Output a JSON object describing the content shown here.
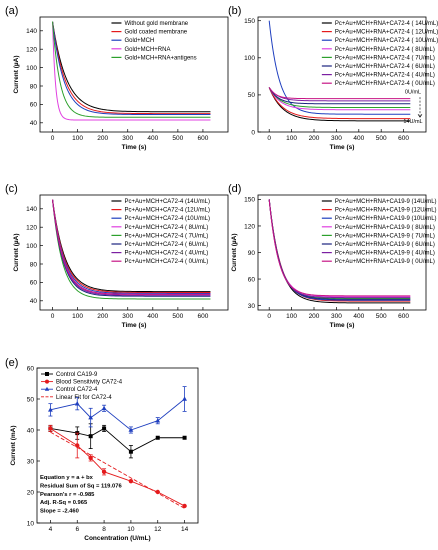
{
  "chart_data": [
    {
      "panel": "(a)",
      "type": "line",
      "xlabel": "Time (s)",
      "ylabel": "Current (µA)",
      "xlim": [
        -50,
        700
      ],
      "ylim": [
        30,
        155
      ],
      "xticks": [
        0,
        100,
        200,
        300,
        400,
        500,
        600
      ],
      "yticks": [
        40,
        60,
        80,
        100,
        120,
        140
      ],
      "legend": "top-right",
      "series": [
        {
          "name": "Without gold membrane",
          "color": "#000000",
          "start": 150,
          "end": 52,
          "tau": 55
        },
        {
          "name": "Gold coated membrane",
          "color": "#e41a1c",
          "start": 150,
          "end": 50,
          "tau": 50
        },
        {
          "name": "Gold+MCH",
          "color": "#1f3fbf",
          "start": 150,
          "end": 49,
          "tau": 45
        },
        {
          "name": "Gold+MCH+RNA",
          "color": "#e040e0",
          "start": 150,
          "end": 43,
          "tau": 12
        },
        {
          "name": "Gold+MCH+RNA+antigens",
          "color": "#2ca02c",
          "start": 150,
          "end": 46,
          "tau": 30
        }
      ]
    },
    {
      "panel": "(b)",
      "type": "line",
      "xlabel": "Time (s)",
      "ylabel": "",
      "xlim": [
        -50,
        700
      ],
      "ylim": [
        0,
        155
      ],
      "xticks": [
        0,
        100,
        200,
        300,
        400,
        500,
        600
      ],
      "yticks": [
        0,
        50,
        100,
        150
      ],
      "legend": "top-right",
      "annotations": [
        "0U/mL",
        "14U/mL"
      ],
      "series": [
        {
          "name": "Pc+Au+MCH+RNA+CA72-4 ( 14U/mL)",
          "color": "#000000",
          "start": 60,
          "end": 15,
          "tau": 60
        },
        {
          "name": "Pc+Au+MCH+RNA+CA72-4 ( 12U/mL)",
          "color": "#e41a1c",
          "start": 60,
          "end": 18,
          "tau": 60
        },
        {
          "name": "Pc+Au+MCH+RNA+CA72-4 ( 10U/mL)",
          "color": "#1f3fbf",
          "start": 150,
          "end": 24,
          "tau": 45
        },
        {
          "name": "Pc+Au+MCH+RNA+CA72-4 (  8U/mL)",
          "color": "#e040e0",
          "start": 60,
          "end": 30,
          "tau": 50
        },
        {
          "name": "Pc+Au+MCH+RNA+CA72-4 (  7U/mL)",
          "color": "#2ca02c",
          "start": 60,
          "end": 33,
          "tau": 50
        },
        {
          "name": "Pc+Au+MCH+RNA+CA72-4 (  6U/mL)",
          "color": "#1a237e",
          "start": 60,
          "end": 38,
          "tau": 40
        },
        {
          "name": "Pc+Au+MCH+RNA+CA72-4 (  4U/mL)",
          "color": "#7b1fa2",
          "start": 60,
          "end": 42,
          "tau": 40
        },
        {
          "name": "Pc+Au+MCH+RNA+CA72-4 (  0U/mL)",
          "color": "#c71585",
          "start": 60,
          "end": 45,
          "tau": 30
        }
      ]
    },
    {
      "panel": "(c)",
      "type": "line",
      "xlabel": "Time (s)",
      "ylabel": "Current (µA)",
      "xlim": [
        -50,
        700
      ],
      "ylim": [
        30,
        155
      ],
      "xticks": [
        0,
        100,
        200,
        300,
        400,
        500,
        600
      ],
      "yticks": [
        40,
        60,
        80,
        100,
        120,
        140
      ],
      "legend": "top-right",
      "series": [
        {
          "name": "Pc+Au+MCH+CA72-4 (14U/mL)",
          "color": "#000000",
          "start": 150,
          "end": 50,
          "tau": 50
        },
        {
          "name": "Pc+Au+MCH+CA72-4 (12U/mL)",
          "color": "#e41a1c",
          "start": 150,
          "end": 49,
          "tau": 48
        },
        {
          "name": "Pc+Au+MCH+CA72-4 (10U/mL)",
          "color": "#1f3fbf",
          "start": 150,
          "end": 48,
          "tau": 46
        },
        {
          "name": "Pc+Au+MCH+CA72-4 (  8U/mL)",
          "color": "#e040e0",
          "start": 150,
          "end": 47,
          "tau": 44
        },
        {
          "name": "Pc+Au+MCH+CA72-4 (  7U/mL)",
          "color": "#2ca02c",
          "start": 150,
          "end": 42,
          "tau": 40
        },
        {
          "name": "Pc+Au+MCH+CA72-4 (  6U/mL)",
          "color": "#1a237e",
          "start": 150,
          "end": 45,
          "tau": 42
        },
        {
          "name": "Pc+Au+MCH+CA72-4 (  4U/mL)",
          "color": "#7b1fa2",
          "start": 150,
          "end": 46,
          "tau": 43
        },
        {
          "name": "Pc+Au+MCH+CA72-4 (  0U/mL)",
          "color": "#c71585",
          "start": 150,
          "end": 47,
          "tau": 44
        }
      ]
    },
    {
      "panel": "(d)",
      "type": "line",
      "xlabel": "Time (s)",
      "ylabel": "Current (µA)",
      "xlim": [
        -50,
        700
      ],
      "ylim": [
        25,
        155
      ],
      "xticks": [
        0,
        100,
        200,
        300,
        400,
        500,
        600
      ],
      "yticks": [
        30,
        60,
        90,
        120,
        150
      ],
      "legend": "top-right",
      "series": [
        {
          "name": "Pc+Au+MCH+RNA+CA19-9 (14U/mL)",
          "color": "#000000",
          "start": 150,
          "end": 33,
          "tau": 50
        },
        {
          "name": "Pc+Au+MCH+RNA+CA19-9 (12U/mL)",
          "color": "#e41a1c",
          "start": 150,
          "end": 35,
          "tau": 50
        },
        {
          "name": "Pc+Au+MCH+RNA+CA19-9 (10U/mL)",
          "color": "#1f3fbf",
          "start": 150,
          "end": 36,
          "tau": 48
        },
        {
          "name": "Pc+Au+MCH+RNA+CA19-9 (  8U/mL)",
          "color": "#e040e0",
          "start": 150,
          "end": 40,
          "tau": 45
        },
        {
          "name": "Pc+Au+MCH+RNA+CA19-9 (  7U/mL)",
          "color": "#2ca02c",
          "start": 150,
          "end": 38,
          "tau": 46
        },
        {
          "name": "Pc+Au+MCH+RNA+CA19-9 (  6U/mL)",
          "color": "#1a237e",
          "start": 150,
          "end": 37,
          "tau": 47
        },
        {
          "name": "Pc+Au+MCH+RNA+CA19-9 (  4U/mL)",
          "color": "#7b1fa2",
          "start": 150,
          "end": 39,
          "tau": 44
        },
        {
          "name": "Pc+Au+MCH+RNA+CA19-9 (  0U/mL)",
          "color": "#c71585",
          "start": 150,
          "end": 41,
          "tau": 42
        }
      ]
    },
    {
      "panel": "(e)",
      "type": "scatter",
      "xlabel": "Concentration (U/mL)",
      "ylabel": "Current (mA)",
      "xlim": [
        3,
        15
      ],
      "ylim": [
        10,
        60
      ],
      "xticks": [
        4,
        6,
        8,
        10,
        12,
        14
      ],
      "yticks": [
        10,
        20,
        30,
        40,
        50,
        60
      ],
      "x": [
        4,
        6,
        7,
        8,
        10,
        12,
        14
      ],
      "legend": "top-left",
      "series": [
        {
          "name": "Control   CA19-9",
          "color": "#000000",
          "marker": "square",
          "values": [
            40.5,
            39,
            38,
            40.5,
            33,
            37.5,
            37.5
          ],
          "err": [
            1,
            2,
            4,
            1,
            2,
            0,
            0
          ]
        },
        {
          "name": "Blood Sensitivity CA72-4",
          "color": "#e41a1c",
          "marker": "circle",
          "values": [
            40.5,
            35,
            31,
            26.5,
            23.5,
            20,
            15.5
          ],
          "err": [
            1,
            4,
            1,
            1,
            0,
            0,
            0
          ]
        },
        {
          "name": "Control   CA72-4",
          "color": "#1f3fbf",
          "marker": "triangle",
          "values": [
            46.5,
            48.5,
            44,
            47,
            40,
            43,
            50
          ],
          "err": [
            2,
            2,
            3,
            1,
            1,
            1,
            4
          ]
        }
      ],
      "fit": {
        "name": "Linear Fit for  CA72-4",
        "color": "#e41a1c",
        "intercept": 49.15,
        "slope": -2.46
      },
      "stats": [
        "Equation y = a + bx",
        "Residual Sum of Sq = 119.076",
        "Pearson's r = -0.985",
        "Adj. R-Sq = 0.965",
        "Slope = -2.460"
      ]
    }
  ]
}
